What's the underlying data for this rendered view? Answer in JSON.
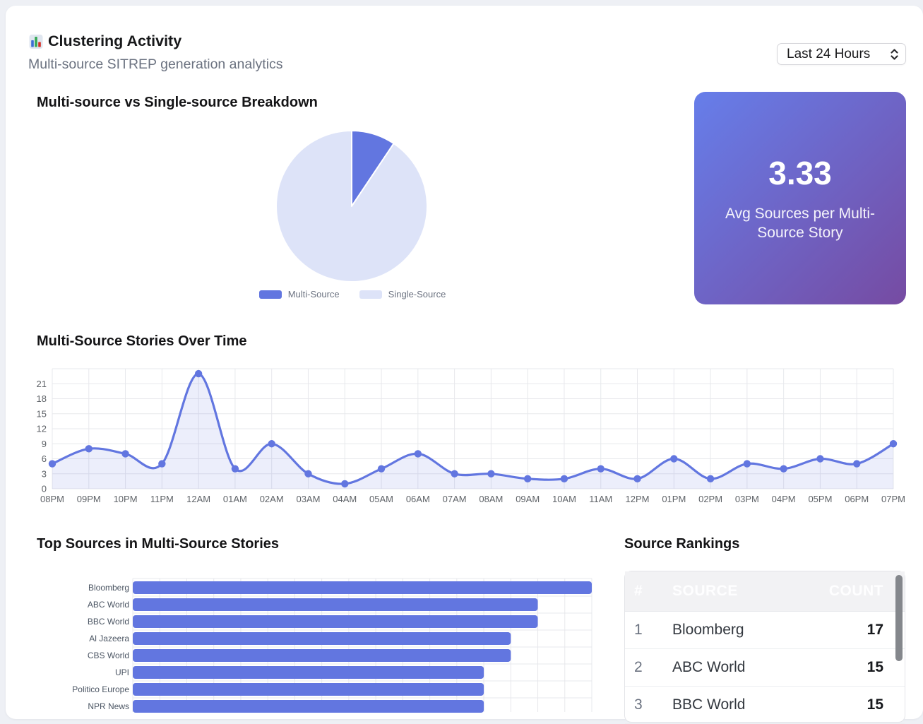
{
  "header": {
    "icon": "bar-chart-emoji",
    "title": "Clustering Activity",
    "subtitle": "Multi-source SITREP generation analytics",
    "time_range_selected": "Last 24 Hours"
  },
  "breakdown": {
    "title": "Multi-source vs Single-source Breakdown"
  },
  "stat_card": {
    "value": "3.33",
    "label": "Avg Sources per Multi-Source Story"
  },
  "timeline": {
    "title": "Multi-Source Stories Over Time"
  },
  "top_sources": {
    "title": "Top Sources in Multi-Source Stories"
  },
  "rankings": {
    "title": "Source Rankings",
    "columns": {
      "rank": "#",
      "source": "SOURCE",
      "count": "COUNT"
    },
    "rows": [
      {
        "rank": 1,
        "source": "Bloomberg",
        "count": 17
      },
      {
        "rank": 2,
        "source": "ABC World",
        "count": 15
      },
      {
        "rank": 3,
        "source": "BBC World",
        "count": 15
      }
    ]
  },
  "colors": {
    "primary_blue": "#6276e0",
    "light_periwinkle": "#dde3f8",
    "gradient_start": "#667eea",
    "gradient_end": "#764ba2",
    "gridline": "#e7e8ec",
    "axis_label": "#5f6368"
  },
  "chart_data": [
    {
      "type": "pie",
      "title": "Multi-source vs Single-source Breakdown",
      "labels": [
        "Multi-Source",
        "Single-Source"
      ],
      "values": [
        9.4,
        90.6
      ],
      "unit": "percent (estimated from slice angle)",
      "colors": [
        "#6276e0",
        "#dde3f8"
      ],
      "legend_position": "bottom"
    },
    {
      "type": "line",
      "title": "Multi-Source Stories Over Time",
      "x": [
        "08PM",
        "09PM",
        "10PM",
        "11PM",
        "12AM",
        "01AM",
        "02AM",
        "03AM",
        "04AM",
        "05AM",
        "06AM",
        "07AM",
        "08AM",
        "09AM",
        "10AM",
        "11AM",
        "12PM",
        "01PM",
        "02PM",
        "03PM",
        "04PM",
        "05PM",
        "06PM",
        "07PM"
      ],
      "series": [
        {
          "name": "Multi-Source Stories",
          "values": [
            5,
            8,
            7,
            5,
            23,
            4,
            9,
            3,
            1,
            4,
            7,
            3,
            3,
            2,
            2,
            4,
            2,
            6,
            2,
            5,
            4,
            6,
            5,
            9
          ]
        }
      ],
      "ylim": [
        0,
        24
      ],
      "yticks": [
        0,
        3,
        6,
        9,
        12,
        15,
        18,
        21
      ],
      "grid": true,
      "smooth": true,
      "area_fill": true,
      "legend_position": "none"
    },
    {
      "type": "bar",
      "title": "Top Sources in Multi-Source Stories",
      "orientation": "horizontal",
      "categories": [
        "Bloomberg",
        "ABC World",
        "BBC World",
        "Al Jazeera",
        "CBS World",
        "UPI",
        "Politico Europe",
        "NPR News"
      ],
      "values": [
        17,
        15,
        15,
        14,
        14,
        13,
        13,
        13
      ],
      "xlim": [
        0,
        17
      ],
      "grid": true,
      "legend_position": "none"
    }
  ]
}
